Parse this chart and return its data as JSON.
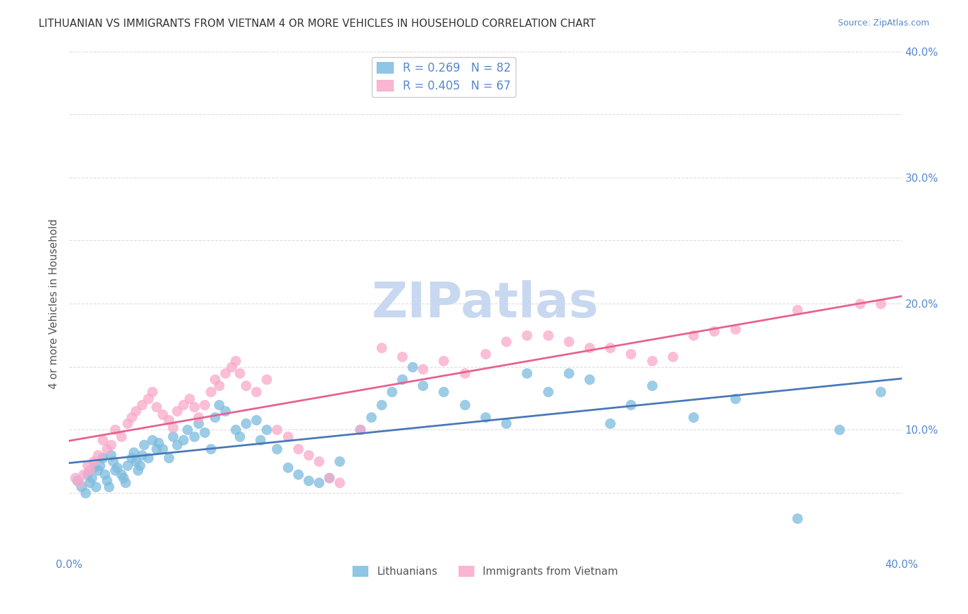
{
  "title": "LITHUANIAN VS IMMIGRANTS FROM VIETNAM 4 OR MORE VEHICLES IN HOUSEHOLD CORRELATION CHART",
  "source": "Source: ZipAtlas.com",
  "xlabel_bottom": "",
  "ylabel": "4 or more Vehicles in Household",
  "xlim": [
    0.0,
    0.4
  ],
  "ylim": [
    0.0,
    0.4
  ],
  "xticks": [
    0.0,
    0.05,
    0.1,
    0.15,
    0.2,
    0.25,
    0.3,
    0.35,
    0.4
  ],
  "yticks": [
    0.0,
    0.05,
    0.1,
    0.15,
    0.2,
    0.25,
    0.3,
    0.35,
    0.4
  ],
  "xticklabels": [
    "0.0%",
    "",
    "",
    "",
    "",
    "",
    "",
    "",
    "40.0%"
  ],
  "yticklabels_right": [
    "",
    "",
    "10.0%",
    "",
    "20.0%",
    "",
    "30.0%",
    "",
    "40.0%"
  ],
  "legend_entries": [
    {
      "label": "R = 0.269   N = 82",
      "color": "#6baed6"
    },
    {
      "label": "R = 0.405   N = 67",
      "color": "#fb6eb0"
    }
  ],
  "series1_color": "#7bbcde",
  "series2_color": "#f9a8c9",
  "trendline1_color": "#4878b8",
  "trendline2_color": "#e86090",
  "background_color": "#ffffff",
  "grid_color": "#dddddd",
  "title_color": "#333333",
  "axis_label_color": "#555555",
  "tick_label_color": "#5588cc",
  "watermark_text": "ZIPatlas",
  "watermark_color": "#c8d8f0",
  "r1": 0.269,
  "n1": 82,
  "r2": 0.405,
  "n2": 67,
  "scatter1_x": [
    0.004,
    0.006,
    0.008,
    0.009,
    0.01,
    0.011,
    0.012,
    0.013,
    0.014,
    0.015,
    0.016,
    0.017,
    0.018,
    0.019,
    0.02,
    0.021,
    0.022,
    0.023,
    0.025,
    0.026,
    0.027,
    0.028,
    0.03,
    0.031,
    0.032,
    0.033,
    0.034,
    0.035,
    0.036,
    0.038,
    0.04,
    0.042,
    0.043,
    0.045,
    0.048,
    0.05,
    0.052,
    0.055,
    0.057,
    0.06,
    0.062,
    0.065,
    0.068,
    0.07,
    0.072,
    0.075,
    0.08,
    0.082,
    0.085,
    0.09,
    0.092,
    0.095,
    0.1,
    0.105,
    0.11,
    0.115,
    0.12,
    0.125,
    0.13,
    0.14,
    0.145,
    0.15,
    0.155,
    0.16,
    0.165,
    0.17,
    0.18,
    0.19,
    0.2,
    0.21,
    0.22,
    0.23,
    0.24,
    0.25,
    0.26,
    0.27,
    0.28,
    0.3,
    0.32,
    0.35,
    0.37,
    0.39
  ],
  "scatter1_y": [
    0.06,
    0.055,
    0.05,
    0.065,
    0.058,
    0.062,
    0.07,
    0.055,
    0.068,
    0.072,
    0.078,
    0.065,
    0.06,
    0.055,
    0.08,
    0.075,
    0.068,
    0.07,
    0.065,
    0.062,
    0.058,
    0.072,
    0.078,
    0.082,
    0.075,
    0.068,
    0.072,
    0.08,
    0.088,
    0.078,
    0.092,
    0.085,
    0.09,
    0.085,
    0.078,
    0.095,
    0.088,
    0.092,
    0.1,
    0.095,
    0.105,
    0.098,
    0.085,
    0.11,
    0.12,
    0.115,
    0.1,
    0.095,
    0.105,
    0.108,
    0.092,
    0.1,
    0.085,
    0.07,
    0.065,
    0.06,
    0.058,
    0.062,
    0.075,
    0.1,
    0.11,
    0.12,
    0.13,
    0.14,
    0.15,
    0.135,
    0.13,
    0.12,
    0.11,
    0.105,
    0.145,
    0.13,
    0.145,
    0.14,
    0.105,
    0.12,
    0.135,
    0.11,
    0.125,
    0.03,
    0.1,
    0.13
  ],
  "scatter2_x": [
    0.003,
    0.005,
    0.007,
    0.009,
    0.01,
    0.012,
    0.014,
    0.016,
    0.018,
    0.02,
    0.022,
    0.025,
    0.028,
    0.03,
    0.032,
    0.035,
    0.038,
    0.04,
    0.042,
    0.045,
    0.048,
    0.05,
    0.052,
    0.055,
    0.058,
    0.06,
    0.062,
    0.065,
    0.068,
    0.07,
    0.072,
    0.075,
    0.078,
    0.08,
    0.082,
    0.085,
    0.09,
    0.095,
    0.1,
    0.105,
    0.11,
    0.115,
    0.12,
    0.125,
    0.13,
    0.14,
    0.15,
    0.16,
    0.17,
    0.18,
    0.19,
    0.2,
    0.21,
    0.22,
    0.23,
    0.24,
    0.25,
    0.26,
    0.27,
    0.28,
    0.29,
    0.3,
    0.31,
    0.32,
    0.35,
    0.38,
    0.39
  ],
  "scatter2_y": [
    0.062,
    0.058,
    0.065,
    0.072,
    0.068,
    0.075,
    0.08,
    0.092,
    0.085,
    0.088,
    0.1,
    0.095,
    0.105,
    0.11,
    0.115,
    0.12,
    0.125,
    0.13,
    0.118,
    0.112,
    0.108,
    0.102,
    0.115,
    0.12,
    0.125,
    0.118,
    0.11,
    0.12,
    0.13,
    0.14,
    0.135,
    0.145,
    0.15,
    0.155,
    0.145,
    0.135,
    0.13,
    0.14,
    0.1,
    0.095,
    0.085,
    0.08,
    0.075,
    0.062,
    0.058,
    0.1,
    0.165,
    0.158,
    0.148,
    0.155,
    0.145,
    0.16,
    0.17,
    0.175,
    0.175,
    0.17,
    0.165,
    0.165,
    0.16,
    0.155,
    0.158,
    0.175,
    0.178,
    0.18,
    0.195,
    0.2,
    0.2
  ]
}
